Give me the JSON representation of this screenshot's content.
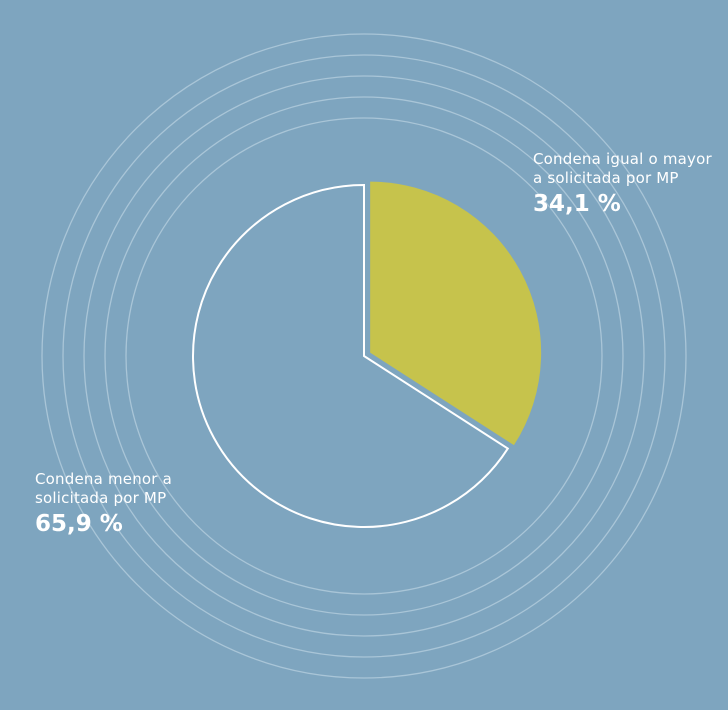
{
  "colors": {
    "background": "#7ea5bf",
    "ring_stroke": "#a9c5d7",
    "highlight": "#c6c34c",
    "outline": "#ffffff",
    "label_text": "#ffffff"
  },
  "chart_data": {
    "type": "pie",
    "start_angle": "12 o'clock",
    "direction": "clockwise",
    "exploded_slice": 0,
    "slices": [
      {
        "label_lines": [
          "Condena igual o mayor",
          "a solicitada por MP"
        ],
        "value": 34.1,
        "value_label": "34,1 %",
        "fill": "#c6c34c",
        "style": "filled"
      },
      {
        "label_lines": [
          "Condena menor a",
          "solicitada por MP"
        ],
        "value": 65.9,
        "value_label": "65,9 %",
        "fill": "none",
        "style": "outline"
      }
    ],
    "decoration": {
      "concentric_rings": 5
    }
  }
}
